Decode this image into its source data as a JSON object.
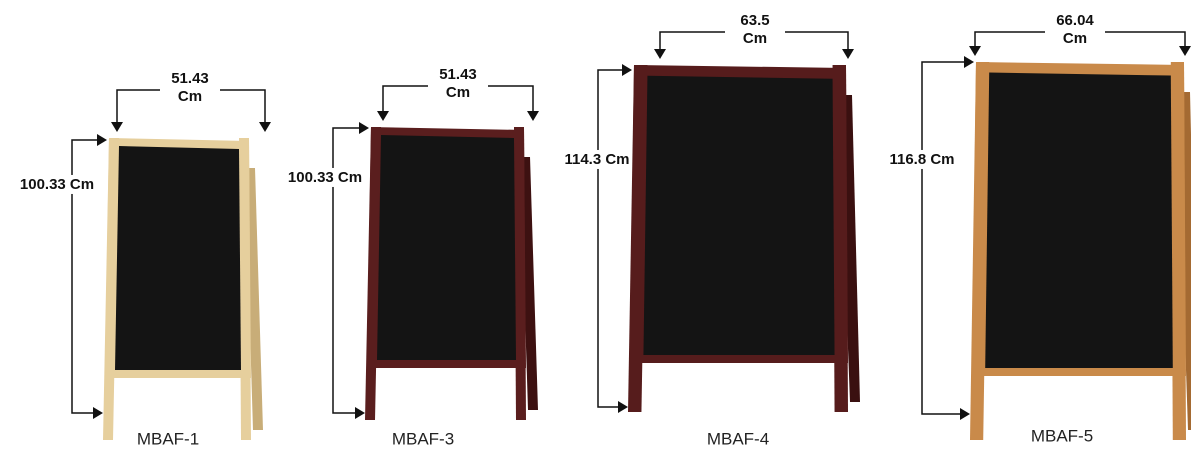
{
  "products": [
    {
      "name": "MBAF-1",
      "width": "51.43",
      "width_unit": "Cm",
      "height": "100.33 Cm"
    },
    {
      "name": "MBAF-3",
      "width": "51.43",
      "width_unit": "Cm",
      "height": "100.33 Cm"
    },
    {
      "name": "MBAF-4",
      "width": "63.5",
      "width_unit": "Cm",
      "height": "114.3 Cm"
    },
    {
      "name": "MBAF-5",
      "width": "66.04",
      "width_unit": "Cm",
      "height": "116.8 Cm"
    }
  ]
}
